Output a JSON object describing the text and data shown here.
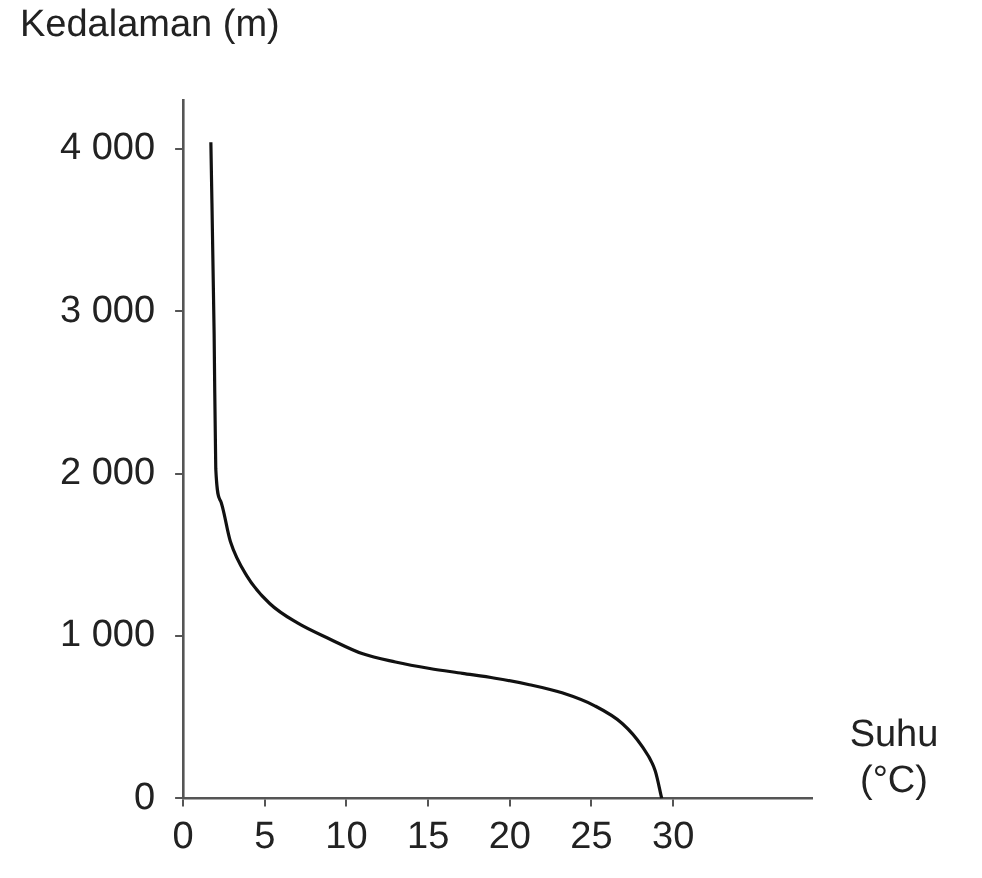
{
  "chart_data": {
    "type": "line",
    "xlabel": "Suhu (°C)",
    "ylabel": "Kedalaman (m)",
    "series": [
      {
        "color": "#111111",
        "x": [
          1.7,
          1.9,
          2.0,
          2.3,
          2.9,
          3.9,
          5.3,
          7.0,
          9.0,
          11.0,
          13.0,
          15.1,
          17.1,
          19.1,
          21.2,
          23.2,
          25.2,
          26.9,
          28.1,
          28.9,
          29.3
        ],
        "values": [
          4040,
          2860,
          2030,
          1830,
          1580,
          1370,
          1200,
          1080,
          980,
          890,
          840,
          800,
          770,
          740,
          700,
          650,
          570,
          460,
          320,
          170,
          0
        ]
      }
    ],
    "xlim": [
      0,
      38.5
    ],
    "xticks": [
      0,
      5,
      10,
      15,
      20,
      25,
      30
    ],
    "ylim": [
      0,
      4300
    ],
    "yticks": [
      {
        "value": 0,
        "label": "0"
      },
      {
        "value": 1000,
        "label": "1 000"
      },
      {
        "value": 2000,
        "label": "2 000"
      },
      {
        "value": 3000,
        "label": "3 000"
      },
      {
        "value": 4000,
        "label": "4 000"
      }
    ],
    "grid": false,
    "legend": false,
    "marker": "none",
    "line_style": "solid"
  }
}
